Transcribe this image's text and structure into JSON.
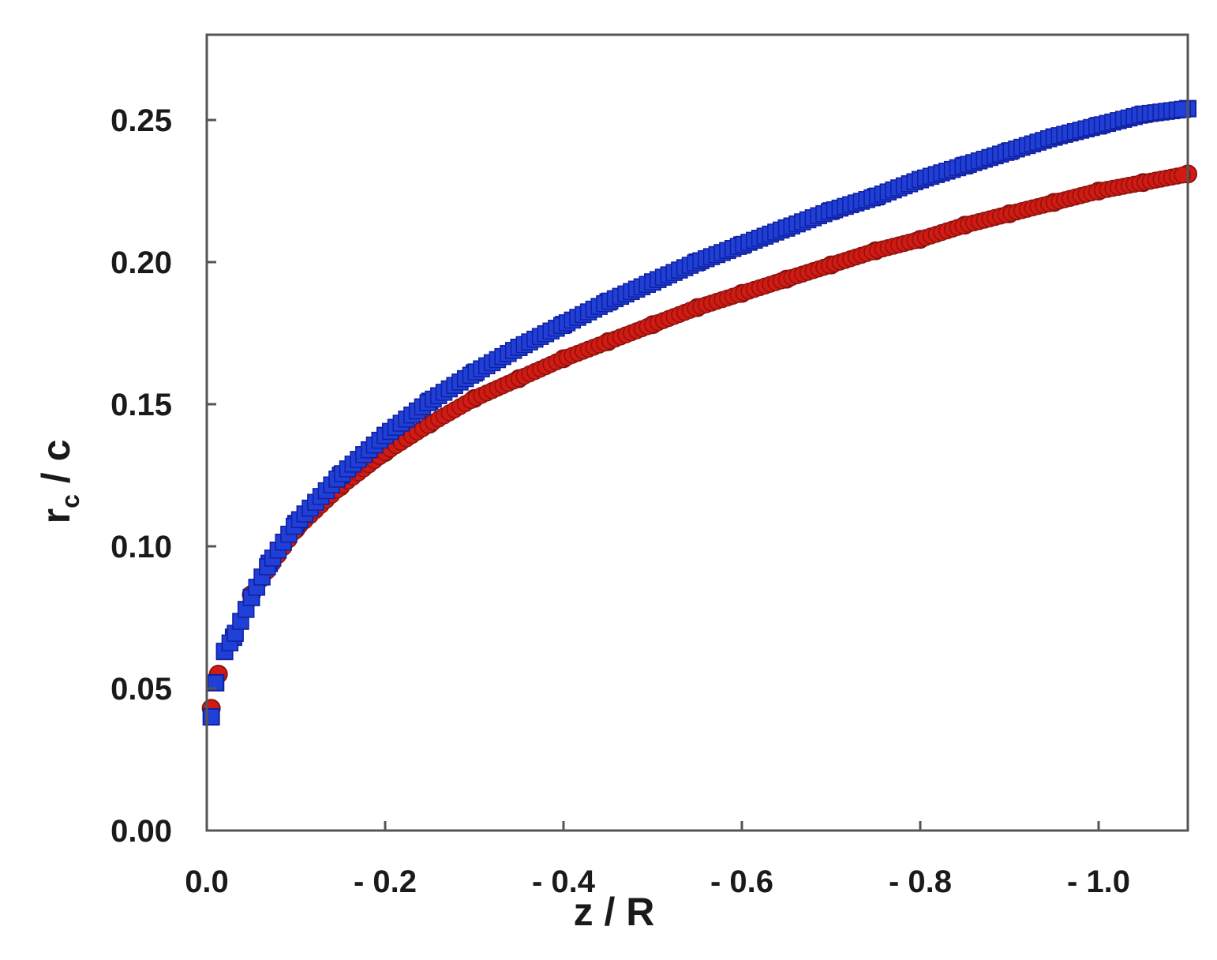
{
  "chart_data": {
    "type": "scatter",
    "title": "",
    "xlabel": "z / R",
    "ylabel_main": "r",
    "ylabel_sub": "c",
    "ylabel_tail": " / c",
    "xlim": [
      0.0,
      1.1
    ],
    "ylim": [
      0.0,
      0.28
    ],
    "x_ticks": [
      0.0,
      0.2,
      0.4,
      0.6,
      0.8,
      1.0
    ],
    "x_tick_labels": [
      "0.0",
      "- 0.2",
      "- 0.4",
      "- 0.6",
      "- 0.8",
      "- 1.0"
    ],
    "y_ticks": [
      0.0,
      0.05,
      0.1,
      0.15,
      0.2,
      0.25
    ],
    "y_tick_labels": [
      "0.00",
      "0.05",
      "0.10",
      "0.15",
      "0.20",
      "0.25"
    ],
    "grid": false,
    "legend": "none",
    "series": [
      {
        "marker": "square",
        "color": "#1f3fd6",
        "x": [
          0.005,
          0.01,
          0.02,
          0.03,
          0.05,
          0.07,
          0.1,
          0.15,
          0.2,
          0.25,
          0.3,
          0.35,
          0.4,
          0.45,
          0.5,
          0.55,
          0.6,
          0.65,
          0.7,
          0.75,
          0.8,
          0.85,
          0.9,
          0.95,
          1.0,
          1.05,
          1.1
        ],
        "y": [
          0.04,
          0.052,
          0.063,
          0.068,
          0.082,
          0.094,
          0.108,
          0.125,
          0.139,
          0.151,
          0.161,
          0.17,
          0.178,
          0.186,
          0.193,
          0.2,
          0.206,
          0.212,
          0.218,
          0.223,
          0.229,
          0.234,
          0.239,
          0.244,
          0.248,
          0.252,
          0.254
        ]
      },
      {
        "marker": "circle",
        "color": "#d21a12",
        "x": [
          0.005,
          0.013,
          0.05,
          0.1,
          0.15,
          0.2,
          0.25,
          0.3,
          0.35,
          0.4,
          0.45,
          0.5,
          0.55,
          0.6,
          0.65,
          0.7,
          0.75,
          0.8,
          0.85,
          0.9,
          0.95,
          1.0,
          1.05,
          1.1
        ],
        "y": [
          0.043,
          0.055,
          0.083,
          0.106,
          0.121,
          0.133,
          0.143,
          0.152,
          0.159,
          0.166,
          0.172,
          0.178,
          0.184,
          0.189,
          0.194,
          0.199,
          0.204,
          0.208,
          0.213,
          0.217,
          0.221,
          0.225,
          0.228,
          0.231
        ]
      }
    ]
  }
}
